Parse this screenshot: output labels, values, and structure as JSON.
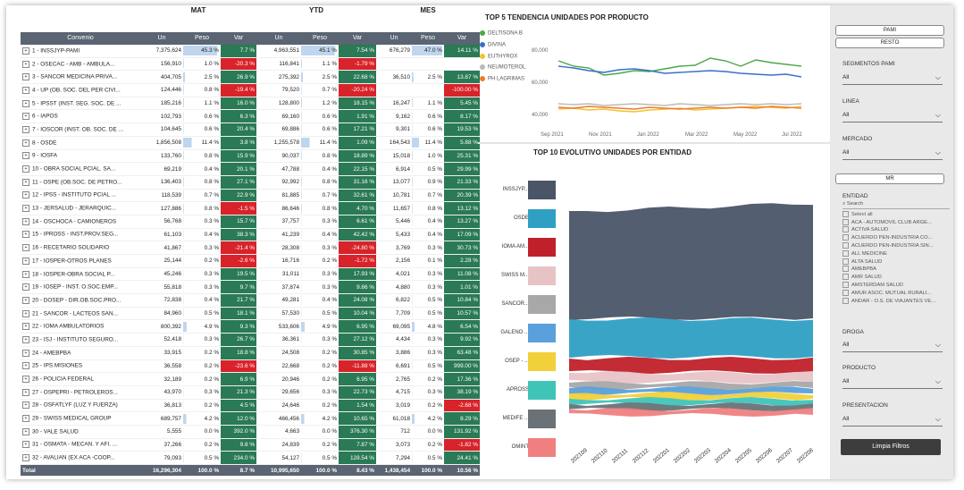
{
  "groups": {
    "mat": "MAT",
    "ytd": "YTD",
    "mes": "MES"
  },
  "columns": {
    "convenio": "Convenio",
    "un": "Un",
    "peso": "Peso",
    "var": "Var"
  },
  "rows": [
    {
      "n": "1 - INSSJYP-PAMI",
      "mu": "7,375,624",
      "mp": "45.3 %",
      "mv": "7.7 %",
      "yu": "4,963,551",
      "yp": "45.1 %",
      "yv": "7.54 %",
      "su": "676,279",
      "sp": "47.0 %",
      "sv": "14.11 %",
      "mvs": "pos",
      "yvs": "pos",
      "svs": "pos"
    },
    {
      "n": "2 - OSECAC - AMB - AMBULA...",
      "mu": "156,910",
      "mp": "1.0 %",
      "mv": "-20.3 %",
      "yu": "116,841",
      "yp": "1.1 %",
      "yv": "-1.79 %",
      "su": "",
      "sp": "",
      "sv": "",
      "mvs": "neg",
      "yvs": "neg",
      "svs": ""
    },
    {
      "n": "3 - SANCOR MEDICINA PRIVA...",
      "mu": "404,705",
      "mp": "2.5 %",
      "mv": "26.9 %",
      "yu": "275,392",
      "yp": "2.5 %",
      "yv": "22.68 %",
      "su": "36,510",
      "sp": "2.5 %",
      "sv": "13.87 %",
      "mvs": "pos",
      "yvs": "pos",
      "svs": "pos"
    },
    {
      "n": "4 - UP (OB. SOC. DEL PER CIVI...",
      "mu": "124,446",
      "mp": "0.8 %",
      "mv": "-19.4 %",
      "yu": "79,520",
      "yp": "0.7 %",
      "yv": "-20.24 %",
      "su": "",
      "sp": "",
      "sv": "-100.00 %",
      "mvs": "neg",
      "yvs": "neg",
      "svs": "neg"
    },
    {
      "n": "5 - IPSST (INST. SEG. SOC. DE ...",
      "mu": "185,216",
      "mp": "1.1 %",
      "mv": "16.0 %",
      "yu": "128,800",
      "yp": "1.2 %",
      "yv": "18.15 %",
      "su": "16,247",
      "sp": "1.1 %",
      "sv": "5.45 %",
      "mvs": "pos",
      "yvs": "pos",
      "svs": "pos"
    },
    {
      "n": "6 - IAPOS",
      "mu": "102,793",
      "mp": "0.6 %",
      "mv": "6.3 %",
      "yu": "69,160",
      "yp": "0.6 %",
      "yv": "1.91 %",
      "su": "9,162",
      "sp": "0.6 %",
      "sv": "8.17 %",
      "mvs": "pos",
      "yvs": "pos",
      "svs": "pos"
    },
    {
      "n": "7 - IOSCOR (INST. OB. SOC. DE ...",
      "mu": "104,645",
      "mp": "0.6 %",
      "mv": "20.4 %",
      "yu": "69,886",
      "yp": "0.6 %",
      "yv": "17.21 %",
      "su": "9,301",
      "sp": "0.6 %",
      "sv": "19.53 %",
      "mvs": "pos",
      "yvs": "pos",
      "svs": "pos"
    },
    {
      "n": "8 - OSDE",
      "mu": "1,856,508",
      "mp": "11.4 %",
      "mv": "3.8 %",
      "yu": "1,255,578",
      "yp": "11.4 %",
      "yv": "1.09 %",
      "su": "164,543",
      "sp": "11.4 %",
      "sv": "5.88 %",
      "mvs": "pos",
      "yvs": "pos",
      "svs": "pos"
    },
    {
      "n": "9 - IOSFA",
      "mu": "133,760",
      "mp": "0.8 %",
      "mv": "15.9 %",
      "yu": "90,037",
      "yp": "0.8 %",
      "yv": "18.89 %",
      "su": "15,018",
      "sp": "1.0 %",
      "sv": "25.31 %",
      "mvs": "pos",
      "yvs": "pos",
      "svs": "pos"
    },
    {
      "n": "10 - OBRA SOCIAL PCIAL. SA...",
      "mu": "69,219",
      "mp": "0.4 %",
      "mv": "20.1 %",
      "yu": "47,788",
      "yp": "0.4 %",
      "yv": "22.15 %",
      "su": "6,914",
      "sp": "0.5 %",
      "sv": "29.99 %",
      "mvs": "pos",
      "yvs": "pos",
      "svs": "pos"
    },
    {
      "n": "11 - OSPE (OB.SOC. DE PETRO...",
      "mu": "136,403",
      "mp": "0.8 %",
      "mv": "27.1 %",
      "yu": "92,992",
      "yp": "0.8 %",
      "yv": "31.16 %",
      "su": "13,077",
      "sp": "0.9 %",
      "sv": "21.33 %",
      "mvs": "pos",
      "yvs": "pos",
      "svs": "pos"
    },
    {
      "n": "12 - IPSS - INSTITUTO PCIAL ...",
      "mu": "118,539",
      "mp": "0.7 %",
      "mv": "22.9 %",
      "yu": "81,885",
      "yp": "0.7 %",
      "yv": "32.61 %",
      "su": "10,781",
      "sp": "0.7 %",
      "sv": "20.39 %",
      "mvs": "pos",
      "yvs": "pos",
      "svs": "pos"
    },
    {
      "n": "13 - JERSALUD - JERARQUIC...",
      "mu": "127,886",
      "mp": "0.8 %",
      "mv": "-1.5 %",
      "yu": "86,646",
      "yp": "0.8 %",
      "yv": "4.70 %",
      "su": "11,657",
      "sp": "0.8 %",
      "sv": "13.12 %",
      "mvs": "neg",
      "yvs": "pos",
      "svs": "pos"
    },
    {
      "n": "14 - OSCHOCA - CAMIONEROS",
      "mu": "56,768",
      "mp": "0.3 %",
      "mv": "15.7 %",
      "yu": "37,757",
      "yp": "0.3 %",
      "yv": "6.61 %",
      "su": "5,446",
      "sp": "0.4 %",
      "sv": "13.27 %",
      "mvs": "pos",
      "yvs": "pos",
      "svs": "pos"
    },
    {
      "n": "15 - IPROSS - INST.PROV.SEG...",
      "mu": "61,103",
      "mp": "0.4 %",
      "mv": "38.3 %",
      "yu": "41,239",
      "yp": "0.4 %",
      "yv": "42.42 %",
      "su": "5,433",
      "sp": "0.4 %",
      "sv": "17.09 %",
      "mvs": "pos",
      "yvs": "pos",
      "svs": "pos"
    },
    {
      "n": "16 - RECETARIO SOLIDARIO",
      "mu": "41,867",
      "mp": "0.3 %",
      "mv": "-21.4 %",
      "yu": "28,308",
      "yp": "0.3 %",
      "yv": "-24.80 %",
      "su": "3,769",
      "sp": "0.3 %",
      "sv": "30.73 %",
      "mvs": "neg",
      "yvs": "neg",
      "svs": "pos"
    },
    {
      "n": "17 - IOSPER-OTROS PLANES",
      "mu": "25,144",
      "mp": "0.2 %",
      "mv": "-2.6 %",
      "yu": "16,716",
      "yp": "0.2 %",
      "yv": "-1.72 %",
      "su": "2,156",
      "sp": "0.1 %",
      "sv": "2.28 %",
      "mvs": "neg",
      "yvs": "neg",
      "svs": "pos"
    },
    {
      "n": "18 - IOSPER-OBRA SOCIAL P...",
      "mu": "45,246",
      "mp": "0.3 %",
      "mv": "19.5 %",
      "yu": "31,011",
      "yp": "0.3 %",
      "yv": "17.93 %",
      "su": "4,021",
      "sp": "0.3 %",
      "sv": "11.08 %",
      "mvs": "pos",
      "yvs": "pos",
      "svs": "pos"
    },
    {
      "n": "19 - IOSEP - INST. O.SOC.EMP...",
      "mu": "55,818",
      "mp": "0.3 %",
      "mv": "9.7 %",
      "yu": "37,874",
      "yp": "0.3 %",
      "yv": "9.86 %",
      "su": "4,880",
      "sp": "0.3 %",
      "sv": "1.01 %",
      "mvs": "pos",
      "yvs": "pos",
      "svs": "pos"
    },
    {
      "n": "20 - DOSEP - DIR.OB.SOC.PRO...",
      "mu": "72,838",
      "mp": "0.4 %",
      "mv": "21.7 %",
      "yu": "49,281",
      "yp": "0.4 %",
      "yv": "24.08 %",
      "su": "6,822",
      "sp": "0.5 %",
      "sv": "10.84 %",
      "mvs": "pos",
      "yvs": "pos",
      "svs": "pos"
    },
    {
      "n": "21 - SANCOR - LACTEOS SAN...",
      "mu": "84,960",
      "mp": "0.5 %",
      "mv": "18.1 %",
      "yu": "57,530",
      "yp": "0.5 %",
      "yv": "10.04 %",
      "su": "7,709",
      "sp": "0.5 %",
      "sv": "10.57 %",
      "mvs": "pos",
      "yvs": "pos",
      "svs": "pos"
    },
    {
      "n": "22 - IOMA AMBULATORIOS",
      "mu": "800,392",
      "mp": "4.9 %",
      "mv": "9.3 %",
      "yu": "533,606",
      "yp": "4.9 %",
      "yv": "6.95 %",
      "su": "69,095",
      "sp": "4.8 %",
      "sv": "6.54 %",
      "mvs": "pos",
      "yvs": "pos",
      "svs": "pos"
    },
    {
      "n": "23 - ISJ - INSTITUTO SEGURO...",
      "mu": "52,418",
      "mp": "0.3 %",
      "mv": "26.7 %",
      "yu": "36,361",
      "yp": "0.3 %",
      "yv": "27.12 %",
      "su": "4,434",
      "sp": "0.3 %",
      "sv": "9.92 %",
      "mvs": "pos",
      "yvs": "pos",
      "svs": "pos"
    },
    {
      "n": "24 - AMEBPBA",
      "mu": "33,915",
      "mp": "0.2 %",
      "mv": "18.8 %",
      "yu": "24,508",
      "yp": "0.2 %",
      "yv": "30.85 %",
      "su": "3,886",
      "sp": "0.3 %",
      "sv": "63.48 %",
      "mvs": "pos",
      "yvs": "pos",
      "svs": "pos"
    },
    {
      "n": "25 - IPS MISIONES",
      "mu": "36,558",
      "mp": "0.2 %",
      "mv": "-23.6 %",
      "yu": "22,668",
      "yp": "0.2 %",
      "yv": "-11.88 %",
      "su": "6,691",
      "sp": "0.5 %",
      "sv": "999.00 %",
      "mvs": "neg",
      "yvs": "neg",
      "svs": "pos"
    },
    {
      "n": "26 - POLICIA FEDERAL",
      "mu": "32,189",
      "mp": "0.2 %",
      "mv": "6.9 %",
      "yu": "20,946",
      "yp": "0.2 %",
      "yv": "6.95 %",
      "su": "2,765",
      "sp": "0.2 %",
      "sv": "17.36 %",
      "mvs": "pos",
      "yvs": "pos",
      "svs": "pos"
    },
    {
      "n": "27 - OSPEPRI - PETROLEROS...",
      "mu": "43,970",
      "mp": "0.3 %",
      "mv": "21.3 %",
      "yu": "29,656",
      "yp": "0.3 %",
      "yv": "22.73 %",
      "su": "4,715",
      "sp": "0.3 %",
      "sv": "38.19 %",
      "mvs": "pos",
      "yvs": "pos",
      "svs": "pos"
    },
    {
      "n": "28 - OSFATLYF (LUZ Y FUERZA)",
      "mu": "36,813",
      "mp": "0.2 %",
      "mv": "4.5 %",
      "yu": "24,646",
      "yp": "0.2 %",
      "yv": "1.54 %",
      "su": "3,019",
      "sp": "0.2 %",
      "sv": "-2.68 %",
      "mvs": "pos",
      "yvs": "pos",
      "svs": "neg"
    },
    {
      "n": "29 - SWISS MEDICAL GROUP",
      "mu": "689,757",
      "mp": "4.2 %",
      "mv": "12.0 %",
      "yu": "466,456",
      "yp": "4.2 %",
      "yv": "10.65 %",
      "su": "61,018",
      "sp": "4.2 %",
      "sv": "8.29 %",
      "mvs": "pos",
      "yvs": "pos",
      "svs": "pos"
    },
    {
      "n": "30 - VALE SALUD",
      "mu": "5,555",
      "mp": "0.0 %",
      "mv": "392.0 %",
      "yu": "4,663",
      "yp": "0.0 %",
      "yv": "376.30 %",
      "su": "712",
      "sp": "0.0 %",
      "sv": "131.92 %",
      "mvs": "pos",
      "yvs": "pos",
      "svs": "pos"
    },
    {
      "n": "31 - OSMATA - MECAN. Y AFI. ...",
      "mu": "37,266",
      "mp": "0.2 %",
      "mv": "9.8 %",
      "yu": "24,839",
      "yp": "0.2 %",
      "yv": "7.87 %",
      "su": "3,073",
      "sp": "0.2 %",
      "sv": "-1.82 %",
      "mvs": "pos",
      "yvs": "pos",
      "svs": "neg"
    },
    {
      "n": "32 - AVALIAN (EX ACA -COOP...",
      "mu": "79,093",
      "mp": "0.5 %",
      "mv": "234.0 %",
      "yu": "54,127",
      "yp": "0.5 %",
      "yv": "128.54 %",
      "su": "7,294",
      "sp": "0.5 %",
      "sv": "24.41 %",
      "mvs": "pos",
      "yvs": "pos",
      "svs": "pos"
    }
  ],
  "total": {
    "n": "Total",
    "mu": "16,296,304",
    "mp": "100.0 %",
    "mv": "8.7 %",
    "yu": "10,995,650",
    "yp": "100.0 %",
    "yv": "8.43 %",
    "su": "1,438,454",
    "sp": "100.0 %",
    "sv": "10.56 %"
  },
  "line_chart": {
    "title": "TOP 5 TENDENCIA UNIDADES POR PRODUCTO",
    "legend": [
      {
        "name": "DELTISONA B",
        "color": "#4aa84a"
      },
      {
        "name": "DIVINA",
        "color": "#3a6fc8"
      },
      {
        "name": "EUTHYROX",
        "color": "#f2c230"
      },
      {
        "name": "NEUMOTEROL",
        "color": "#bbbbbb"
      },
      {
        "name": "PH LAGRIMAS",
        "color": "#f07a2a"
      }
    ],
    "yticks": [
      "80,000",
      "60,000",
      "40,000"
    ],
    "xticks": [
      "Sep 2021",
      "Nov 2021",
      "Jan 2022",
      "Mar 2022",
      "May 2022",
      "Jul 2022"
    ]
  },
  "bar_chart": {
    "title": "TOP 10  EVOLUTIVO UNIDADES POR ENTIDAD",
    "entities": [
      {
        "name": "INSSJYP...",
        "color": "#4a5568"
      },
      {
        "name": "OSDE",
        "color": "#2f9fc4"
      },
      {
        "name": "IOMA AM...",
        "color": "#c0202a"
      },
      {
        "name": "SWISS M...",
        "color": "#e8c3c6"
      },
      {
        "name": "SANCOR...",
        "color": "#a8a8a8"
      },
      {
        "name": "GALENO ...",
        "color": "#5aa0dc"
      },
      {
        "name": "OSEP - ...",
        "color": "#f2d03a"
      },
      {
        "name": "APROSS",
        "color": "#40c4b8"
      },
      {
        "name": "MEDIFE ...",
        "color": "#6a7277"
      },
      {
        "name": "OMINT",
        "color": "#f08080"
      }
    ],
    "months": [
      "202109",
      "202110",
      "202111",
      "202112",
      "202201",
      "202202",
      "202203",
      "202204",
      "202205",
      "202206",
      "202207",
      "202208"
    ]
  },
  "slicers": {
    "btn_pami": "PAMI",
    "btn_resto": "RESTO",
    "segmentos_label": "SEGMENTOS PAMI",
    "segmentos_value": "All",
    "linea_label": "LINEA",
    "linea_value": "All",
    "mercado_label": "MERCADO",
    "mercado_value": "All",
    "btn_mr": "MR",
    "entidad_label": "ENTIDAD",
    "search_placeholder": "Search",
    "entidad_items": [
      "Select all",
      "ACA - AUTOMOVIL CLUB ARGE...",
      "ACTIVA SALUD",
      "ACUERDO PEN-INDUSTRIA CO...",
      "ACUERDO PEN-INDUSTRIA SIN...",
      "ALL MEDICINE",
      "ALTA SALUD",
      "AMEBPBA",
      "AMR SALUD",
      "AMSTERDAM SALUD",
      "AMUR ASOC. MUTUAL RURALI...",
      "ANDAR - O.S. DE VIAJANTES VE..."
    ],
    "droga_label": "DROGA",
    "droga_value": "All",
    "producto_label": "PRODUCTO",
    "producto_value": "All",
    "presentacion_label": "PRESENTACION",
    "presentacion_value": "All",
    "clear_label": "Limpia Filtros"
  }
}
